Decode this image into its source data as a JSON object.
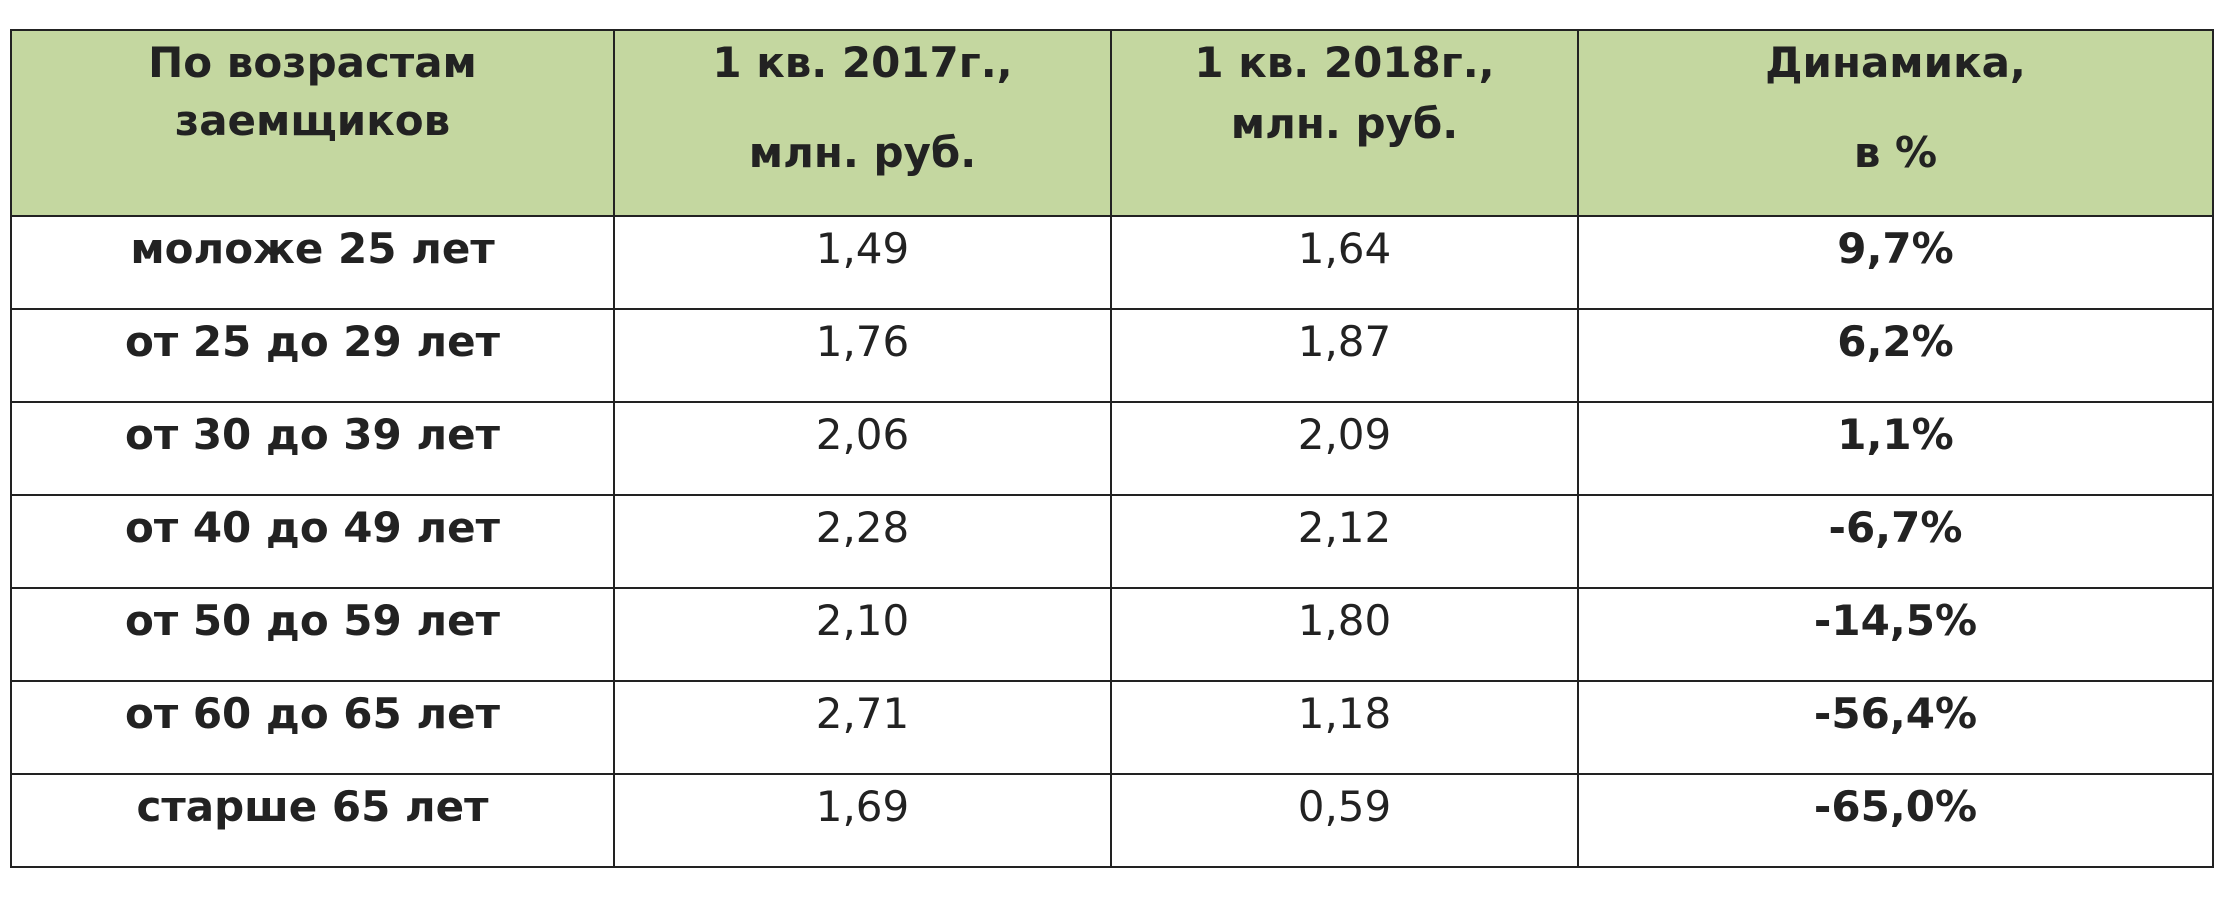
{
  "table": {
    "header": [
      [
        "По возрастам",
        "заемщиков"
      ],
      [
        "1 кв. 2017г.,",
        "млн. руб."
      ],
      [
        "1 кв. 2018г.,",
        "млн. руб."
      ],
      [
        "Динамика,",
        "в %"
      ]
    ],
    "rows": [
      [
        "моложе 25 лет",
        "1,49",
        "1,64",
        "9,7%"
      ],
      [
        "от 25 до 29 лет",
        "1,76",
        "1,87",
        "6,2%"
      ],
      [
        "от 30 до 39 лет",
        "2,06",
        "2,09",
        "1,1%"
      ],
      [
        "от 40 до 49 лет",
        "2,28",
        "2,12",
        "-6,7%"
      ],
      [
        "от 50 до 59 лет",
        "2,10",
        "1,80",
        "-14,5%"
      ],
      [
        "от 60 до 65 лет",
        "2,71",
        "1,18",
        "-56,4%"
      ],
      [
        "старше 65 лет",
        "1,69",
        "0,59",
        "-65,0%"
      ]
    ]
  }
}
